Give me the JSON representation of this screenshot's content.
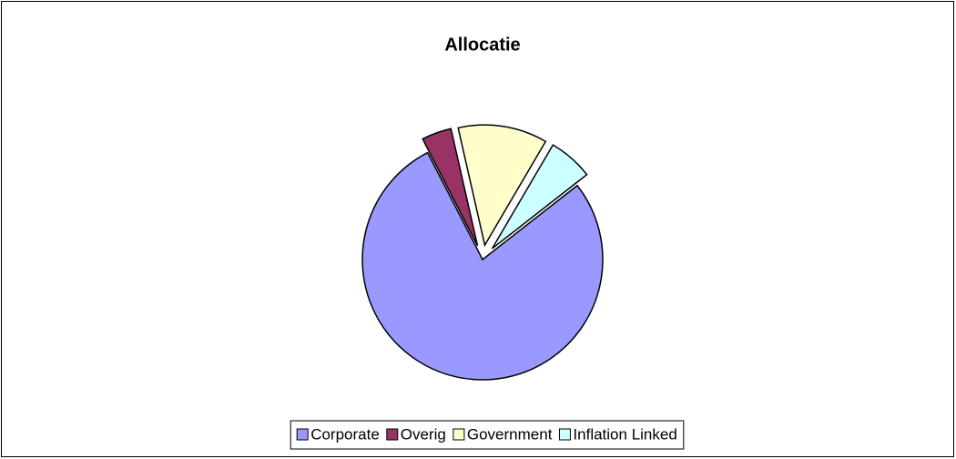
{
  "chart_data": {
    "type": "pie",
    "title": "Allocatie",
    "categories": [
      "Corporate",
      "Overig",
      "Government",
      "Inflation Linked"
    ],
    "values": [
      78,
      4,
      12,
      6
    ],
    "colors": [
      "#9999ff",
      "#993366",
      "#ffffcc",
      "#ccffff"
    ],
    "legend": "bottom"
  }
}
